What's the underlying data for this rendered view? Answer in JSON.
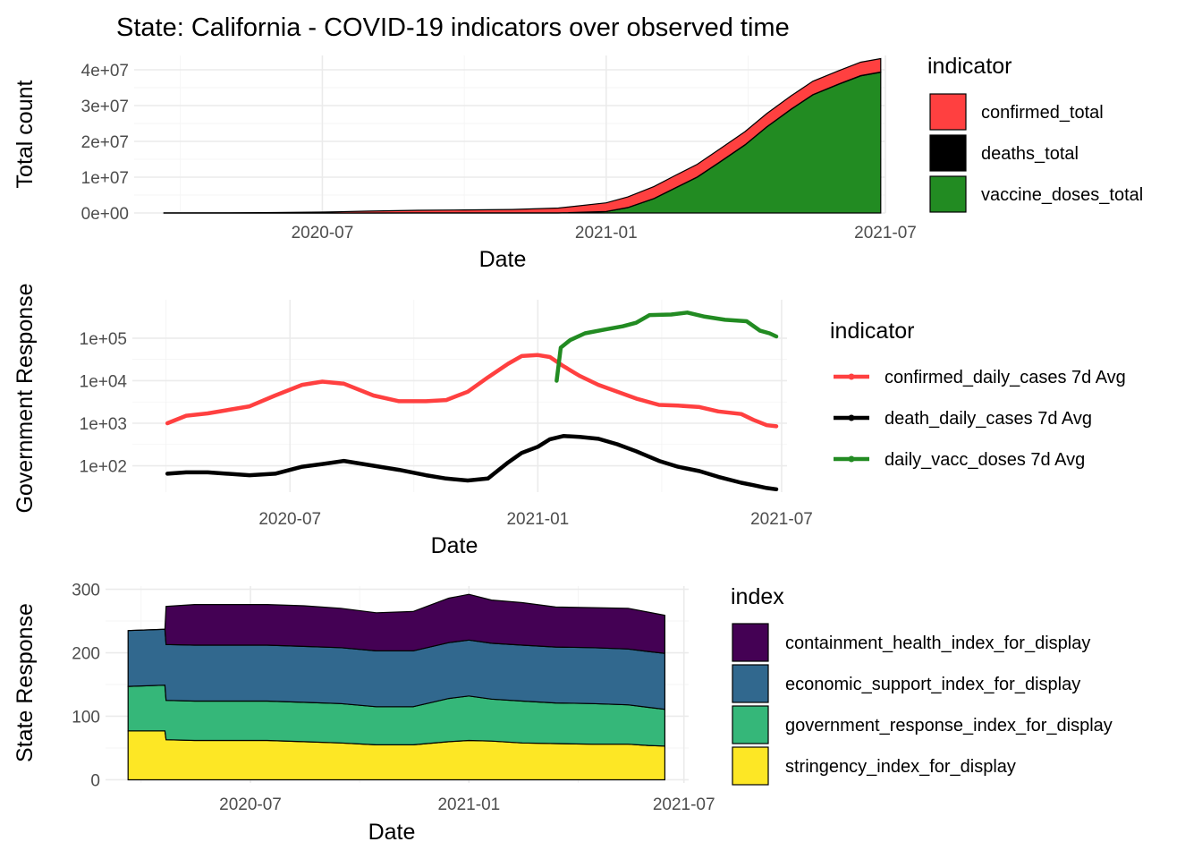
{
  "title": "State: California - COVID-19 indicators over observed time",
  "colors": {
    "confirmed": "#ff4040",
    "deaths": "#000000",
    "vaccine": "#228b22",
    "containment": "#440154",
    "economic": "#31688e",
    "government": "#35b779",
    "stringency": "#fde725"
  },
  "chart_data": [
    {
      "type": "area",
      "name": "total_counts",
      "xlabel": "Date",
      "ylabel": "Total count",
      "x_ticks": [
        "2020-07",
        "2021-01",
        "2021-07"
      ],
      "y_ticks": [
        "0e+00",
        "1e+07",
        "2e+07",
        "3e+07",
        "4e+07"
      ],
      "y_tick_values": [
        0,
        10000000,
        20000000,
        30000000,
        40000000
      ],
      "xlim": [
        "2020-03-01",
        "2021-07-01"
      ],
      "ylim": [
        0,
        44000000
      ],
      "legend_title": "indicator",
      "legend_position": "right",
      "stacked": true,
      "x": [
        "2020-03-20",
        "2020-05-01",
        "2020-06-01",
        "2020-07-01",
        "2020-08-01",
        "2020-09-01",
        "2020-10-01",
        "2020-11-01",
        "2020-12-01",
        "2021-01-01",
        "2021-01-15",
        "2021-02-01",
        "2021-02-15",
        "2021-03-01",
        "2021-03-15",
        "2021-04-01",
        "2021-04-15",
        "2021-05-01",
        "2021-05-15",
        "2021-06-01",
        "2021-06-15",
        "2021-06-28"
      ],
      "series": [
        {
          "name": "vaccine_doses_total",
          "color_key": "vaccine",
          "values": [
            0,
            0,
            0,
            0,
            0,
            0,
            0,
            0,
            0,
            400000,
            1500000,
            4000000,
            7000000,
            10000000,
            14000000,
            19000000,
            24000000,
            29000000,
            33000000,
            36000000,
            38300000,
            39300000
          ]
        },
        {
          "name": "deaths_total",
          "color_key": "deaths",
          "values": [
            1000,
            2500,
            4000,
            6000,
            9500,
            13500,
            16000,
            18000,
            20000,
            26000,
            31000,
            39000,
            46000,
            52000,
            56000,
            59000,
            60500,
            61500,
            62500,
            63000,
            63200,
            63400
          ]
        },
        {
          "name": "confirmed_total",
          "color_key": "confirmed",
          "values": [
            1000,
            55000,
            115000,
            240000,
            520000,
            740000,
            840000,
            960000,
            1350000,
            2400000,
            2950000,
            3360000,
            3470000,
            3550000,
            3610000,
            3660000,
            3690000,
            3715000,
            3730000,
            3745000,
            3755000,
            3765000
          ]
        }
      ]
    },
    {
      "type": "line",
      "name": "government_response",
      "xlabel": "Date",
      "ylabel": "Government Response",
      "scale": "log10",
      "x_ticks": [
        "2020-07",
        "2021-01",
        "2021-07"
      ],
      "y_ticks": [
        "1e+02",
        "1e+03",
        "1e+04",
        "1e+05"
      ],
      "y_tick_values": [
        100,
        1000,
        10000,
        100000
      ],
      "xlim": [
        "2020-03-06",
        "2021-07-05"
      ],
      "ylim": [
        24,
        800000
      ],
      "legend_title": "indicator",
      "legend_position": "right",
      "series": [
        {
          "name": "confirmed_daily_cases 7d Avg",
          "color_key": "confirmed",
          "x": [
            "2020-04-01",
            "2020-04-15",
            "2020-05-01",
            "2020-06-01",
            "2020-06-20",
            "2020-07-10",
            "2020-07-25",
            "2020-08-10",
            "2020-09-01",
            "2020-09-20",
            "2020-10-10",
            "2020-10-25",
            "2020-11-10",
            "2020-11-25",
            "2020-12-10",
            "2020-12-20",
            "2021-01-01",
            "2021-01-10",
            "2021-01-20",
            "2021-02-01",
            "2021-02-15",
            "2021-03-01",
            "2021-03-15",
            "2021-04-01",
            "2021-04-15",
            "2021-05-01",
            "2021-05-15",
            "2021-06-01",
            "2021-06-10",
            "2021-06-20",
            "2021-06-27"
          ],
          "values": [
            1000,
            1500,
            1700,
            2500,
            4500,
            8000,
            9500,
            8500,
            4500,
            3300,
            3300,
            3500,
            5500,
            12000,
            25000,
            38000,
            40000,
            36000,
            22000,
            13000,
            8000,
            5500,
            3800,
            2700,
            2600,
            2400,
            1900,
            1650,
            1200,
            900,
            850
          ]
        },
        {
          "name": "death_daily_cases 7d Avg",
          "color_key": "deaths",
          "x": [
            "2020-04-01",
            "2020-04-15",
            "2020-05-01",
            "2020-06-01",
            "2020-06-20",
            "2020-07-10",
            "2020-07-25",
            "2020-08-10",
            "2020-09-01",
            "2020-09-20",
            "2020-10-10",
            "2020-10-25",
            "2020-11-10",
            "2020-11-25",
            "2020-12-10",
            "2020-12-20",
            "2021-01-01",
            "2021-01-10",
            "2021-01-20",
            "2021-02-01",
            "2021-02-15",
            "2021-03-01",
            "2021-03-15",
            "2021-04-01",
            "2021-04-15",
            "2021-05-01",
            "2021-05-15",
            "2021-06-01",
            "2021-06-10",
            "2021-06-20",
            "2021-06-27"
          ],
          "values": [
            65,
            70,
            70,
            60,
            65,
            95,
            110,
            130,
            100,
            80,
            60,
            50,
            45,
            50,
            120,
            200,
            280,
            420,
            500,
            480,
            430,
            320,
            220,
            130,
            95,
            75,
            55,
            40,
            35,
            30,
            28
          ]
        },
        {
          "name": "daily_vacc_doses 7d Avg",
          "color_key": "vaccine",
          "x": [
            "2021-01-15",
            "2021-01-18",
            "2021-01-25",
            "2021-02-05",
            "2021-02-20",
            "2021-03-05",
            "2021-03-15",
            "2021-03-25",
            "2021-04-10",
            "2021-04-22",
            "2021-05-05",
            "2021-05-20",
            "2021-06-05",
            "2021-06-15",
            "2021-06-22",
            "2021-06-27"
          ],
          "values": [
            10000,
            60000,
            90000,
            130000,
            160000,
            190000,
            230000,
            350000,
            360000,
            400000,
            320000,
            270000,
            250000,
            150000,
            130000,
            110000
          ]
        }
      ]
    },
    {
      "type": "area",
      "name": "state_response",
      "xlabel": "Date",
      "ylabel": "State Response",
      "x_ticks": [
        "2020-07",
        "2021-01",
        "2021-07"
      ],
      "y_ticks": [
        "0",
        "100",
        "200",
        "300"
      ],
      "y_tick_values": [
        0,
        100,
        200,
        300
      ],
      "xlim": [
        "2020-03-01",
        "2021-07-05"
      ],
      "ylim": [
        -5,
        305
      ],
      "legend_title": "index",
      "legend_position": "right",
      "stacked": true,
      "x": [
        "2020-03-20",
        "2020-04-20",
        "2020-04-21",
        "2020-05-15",
        "2020-06-15",
        "2020-07-15",
        "2020-08-15",
        "2020-09-15",
        "2020-10-15",
        "2020-11-15",
        "2020-12-15",
        "2021-01-01",
        "2021-01-20",
        "2021-02-15",
        "2021-03-15",
        "2021-04-15",
        "2021-05-15",
        "2021-06-01",
        "2021-06-15"
      ],
      "series": [
        {
          "name": "stringency_index_for_display",
          "color_key": "stringency",
          "values": [
            77,
            77,
            63,
            62,
            62,
            62,
            60,
            58,
            55,
            55,
            60,
            62,
            61,
            58,
            57,
            56,
            56,
            54,
            53
          ]
        },
        {
          "name": "government_response_index_for_display",
          "color_key": "government",
          "values": [
            70,
            72,
            62,
            62,
            62,
            62,
            62,
            62,
            60,
            60,
            68,
            70,
            66,
            66,
            64,
            64,
            62,
            60,
            58
          ]
        },
        {
          "name": "economic_support_index_for_display",
          "color_key": "economic",
          "values": [
            88,
            88,
            88,
            88,
            88,
            88,
            88,
            88,
            88,
            88,
            88,
            88,
            88,
            88,
            88,
            88,
            88,
            88,
            88
          ]
        },
        {
          "name": "containment_health_index_for_display",
          "color_key": "containment",
          "values": [
            0,
            0,
            60,
            64,
            64,
            64,
            64,
            62,
            60,
            62,
            70,
            72,
            68,
            67,
            63,
            63,
            64,
            62,
            60
          ]
        }
      ]
    }
  ]
}
